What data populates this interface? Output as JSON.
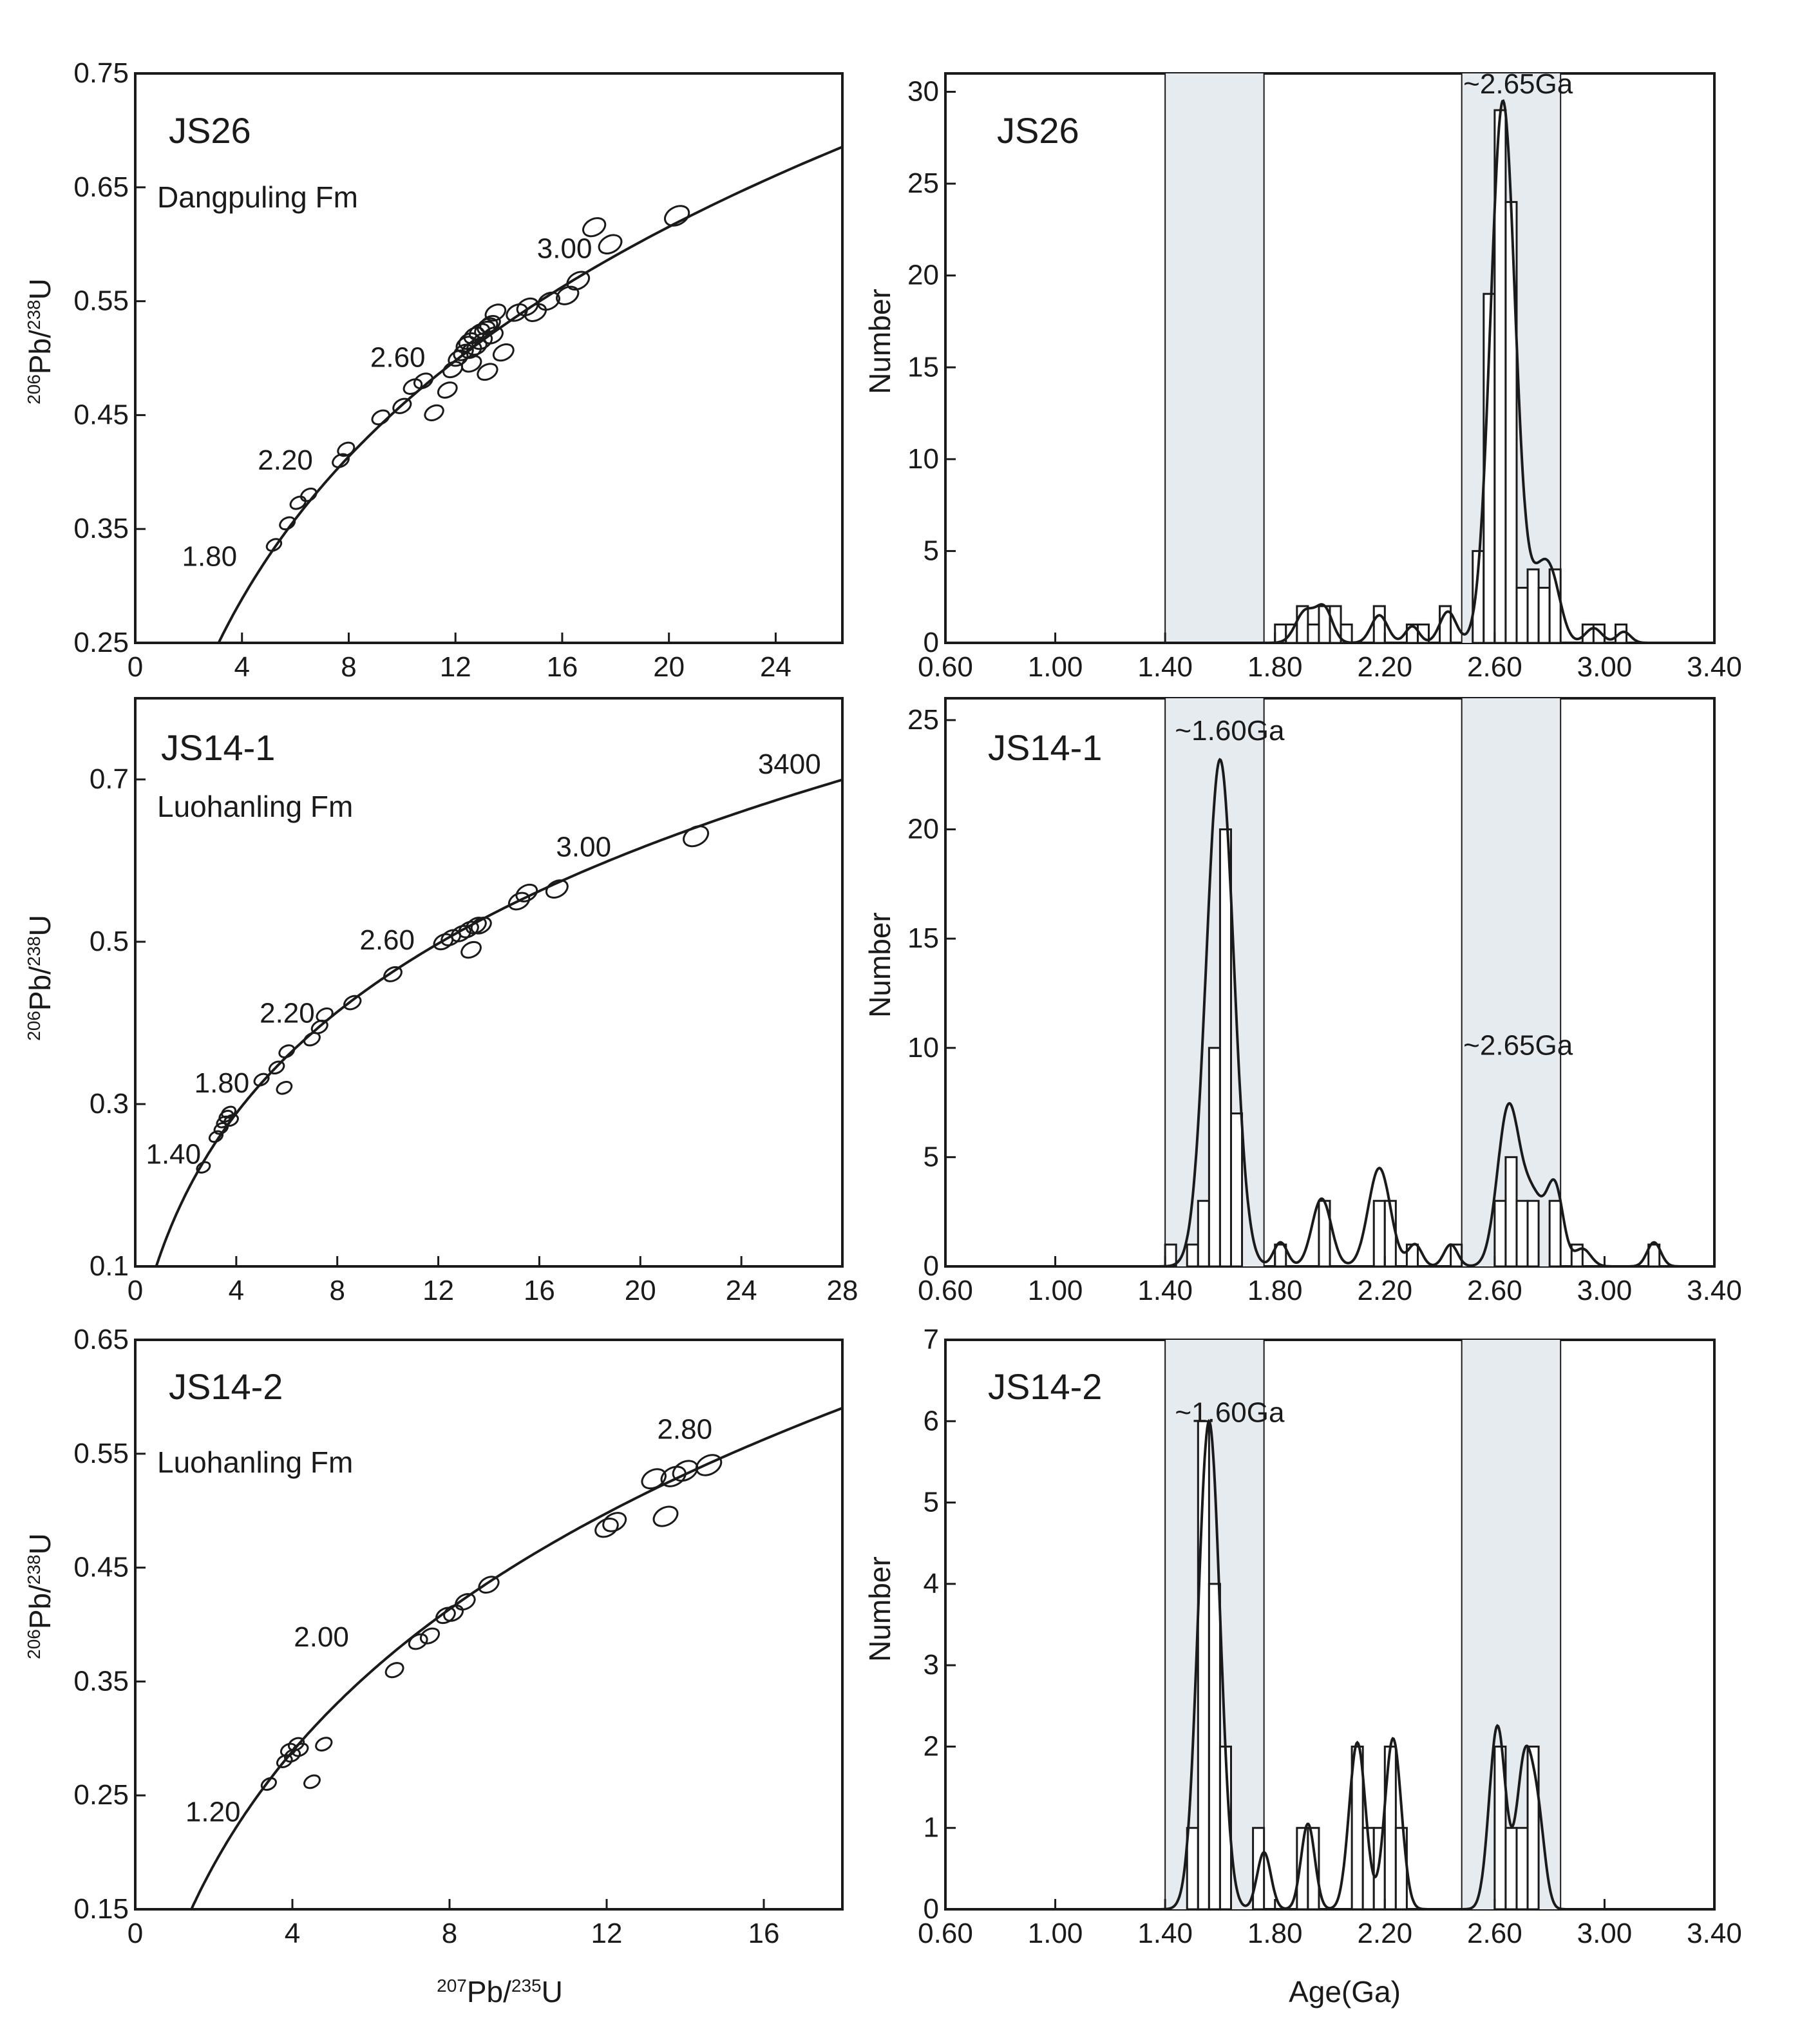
{
  "colors": {
    "ink": "#1a1a1a",
    "band": "#e6ebef",
    "background": "#ffffff"
  },
  "chart_data": [
    {
      "id": "concordia-js26",
      "type": "scatter",
      "subtype": "U-Pb concordia with error ellipses",
      "title": "JS26",
      "subtitle": "Dangpuling Fm",
      "xlabel": {
        "pre": "207",
        "main": "Pb/",
        "sup": "235",
        "post": "U"
      },
      "ylabel": {
        "pre": "206",
        "main": "Pb/",
        "sup": "238",
        "post": "U"
      },
      "xlim": [
        0,
        26.5
      ],
      "ylim": [
        0.25,
        0.75
      ],
      "xticks": [
        0,
        4,
        8,
        12,
        16,
        20,
        24
      ],
      "xtick_labels": [
        "0",
        "4",
        "8",
        "12",
        "16",
        "20",
        "24"
      ],
      "yticks": [
        0.25,
        0.35,
        0.45,
        0.55,
        0.65,
        0.75
      ],
      "ytick_labels": [
        "0.25",
        "0.35",
        "0.45",
        "0.55",
        "0.65",
        "0.75"
      ],
      "age_labels": [
        {
          "text": "1.80",
          "age": 1.8
        },
        {
          "text": "2.20",
          "age": 2.2
        },
        {
          "text": "2.60",
          "age": 2.6
        },
        {
          "text": "3.00",
          "age": 3.0
        }
      ],
      "ellipses": [
        [
          5.2,
          0.336
        ],
        [
          5.7,
          0.355
        ],
        [
          6.1,
          0.373
        ],
        [
          6.5,
          0.38
        ],
        [
          7.7,
          0.41
        ],
        [
          7.9,
          0.42
        ],
        [
          9.2,
          0.448
        ],
        [
          10.0,
          0.458
        ],
        [
          10.4,
          0.475
        ],
        [
          10.8,
          0.48
        ],
        [
          11.2,
          0.452
        ],
        [
          11.7,
          0.472
        ],
        [
          11.9,
          0.49
        ],
        [
          12.1,
          0.5
        ],
        [
          12.3,
          0.505
        ],
        [
          12.4,
          0.512
        ],
        [
          12.5,
          0.515
        ],
        [
          12.6,
          0.507
        ],
        [
          12.7,
          0.52
        ],
        [
          12.8,
          0.51
        ],
        [
          12.9,
          0.523
        ],
        [
          13.0,
          0.515
        ],
        [
          13.1,
          0.525
        ],
        [
          13.2,
          0.528
        ],
        [
          13.3,
          0.53
        ],
        [
          13.4,
          0.52
        ],
        [
          13.5,
          0.54
        ],
        [
          12.6,
          0.495
        ],
        [
          13.2,
          0.488
        ],
        [
          13.8,
          0.505
        ],
        [
          14.3,
          0.54
        ],
        [
          14.7,
          0.545
        ],
        [
          15.0,
          0.54
        ],
        [
          15.5,
          0.55
        ],
        [
          16.2,
          0.555
        ],
        [
          16.6,
          0.568
        ],
        [
          17.2,
          0.615
        ],
        [
          17.8,
          0.6
        ],
        [
          20.3,
          0.625
        ]
      ]
    },
    {
      "id": "histogram-js26",
      "type": "bar",
      "subtype": "histogram with probability density curve",
      "title": "JS26",
      "xlabel": "Age(Ga)",
      "ylabel": "Number",
      "xlim": [
        0.6,
        3.4
      ],
      "ylim": [
        0,
        31
      ],
      "xticks": [
        0.6,
        1.0,
        1.4,
        1.8,
        2.2,
        2.6,
        3.0,
        3.4
      ],
      "xtick_labels": [
        "0.60",
        "1.00",
        "1.40",
        "1.80",
        "2.20",
        "2.60",
        "3.00",
        "3.40"
      ],
      "yticks": [
        0,
        5,
        10,
        15,
        20,
        25,
        30
      ],
      "ytick_labels": [
        "0",
        "5",
        "10",
        "15",
        "20",
        "25",
        "30"
      ],
      "bin_width": 0.04,
      "bins": [
        [
          1.82,
          1
        ],
        [
          1.86,
          1
        ],
        [
          1.9,
          2
        ],
        [
          1.94,
          1
        ],
        [
          1.98,
          2
        ],
        [
          2.02,
          2
        ],
        [
          2.06,
          1
        ],
        [
          2.18,
          2
        ],
        [
          2.3,
          1
        ],
        [
          2.34,
          1
        ],
        [
          2.42,
          2
        ],
        [
          2.54,
          5
        ],
        [
          2.58,
          19
        ],
        [
          2.62,
          29
        ],
        [
          2.66,
          24
        ],
        [
          2.7,
          3
        ],
        [
          2.74,
          4
        ],
        [
          2.78,
          3
        ],
        [
          2.82,
          4
        ],
        [
          2.94,
          1
        ],
        [
          2.98,
          1
        ],
        [
          3.06,
          1
        ]
      ],
      "density_peaks": [
        {
          "age": 2.63,
          "height": 29.5,
          "sd": 0.045
        },
        {
          "age": 2.76,
          "height": 3.0,
          "sd": 0.04
        },
        {
          "age": 2.81,
          "height": 2.6,
          "sd": 0.035
        },
        {
          "age": 1.91,
          "height": 1.7,
          "sd": 0.035
        },
        {
          "age": 1.98,
          "height": 1.8,
          "sd": 0.03
        },
        {
          "age": 2.18,
          "height": 1.5,
          "sd": 0.03
        },
        {
          "age": 2.3,
          "height": 0.9,
          "sd": 0.025
        },
        {
          "age": 2.43,
          "height": 1.7,
          "sd": 0.03
        },
        {
          "age": 2.96,
          "height": 0.8,
          "sd": 0.03
        },
        {
          "age": 3.07,
          "height": 0.6,
          "sd": 0.025
        }
      ],
      "annotations": [
        {
          "text": "~2.65Ga",
          "age": 2.65,
          "value": 30.4
        }
      ],
      "bands": [
        [
          1.4,
          1.76
        ],
        [
          2.48,
          2.84
        ]
      ]
    },
    {
      "id": "concordia-js14-1",
      "type": "scatter",
      "subtype": "U-Pb concordia with error ellipses",
      "title": "JS14-1",
      "subtitle": "Luohanling Fm",
      "xlabel": {
        "pre": "207",
        "main": "Pb/",
        "sup": "235",
        "post": "U"
      },
      "ylabel": {
        "pre": "206",
        "main": "Pb/",
        "sup": "238",
        "post": "U"
      },
      "xlim": [
        0,
        28
      ],
      "ylim": [
        0.1,
        0.8
      ],
      "xticks": [
        0,
        4,
        8,
        12,
        16,
        20,
        24,
        28
      ],
      "xtick_labels": [
        "0",
        "4",
        "8",
        "12",
        "16",
        "20",
        "24",
        "28"
      ],
      "yticks": [
        0.1,
        0.3,
        0.5,
        0.7
      ],
      "ytick_labels": [
        "0.1",
        "0.3",
        "0.5",
        "0.7"
      ],
      "age_labels": [
        {
          "text": "1.40",
          "age": 1.4
        },
        {
          "text": "1.80",
          "age": 1.8
        },
        {
          "text": "2.20",
          "age": 2.2
        },
        {
          "text": "2.60",
          "age": 2.6
        },
        {
          "text": "3.00",
          "age": 3.0
        },
        {
          "text": "3400",
          "age": 3.4
        }
      ],
      "ellipses": [
        [
          2.7,
          0.222
        ],
        [
          3.2,
          0.26
        ],
        [
          3.4,
          0.27
        ],
        [
          3.5,
          0.278
        ],
        [
          3.6,
          0.285
        ],
        [
          3.7,
          0.29
        ],
        [
          3.8,
          0.28
        ],
        [
          5.0,
          0.33
        ],
        [
          5.6,
          0.345
        ],
        [
          5.9,
          0.32
        ],
        [
          6.0,
          0.365
        ],
        [
          7.0,
          0.38
        ],
        [
          7.3,
          0.395
        ],
        [
          7.5,
          0.41
        ],
        [
          8.6,
          0.425
        ],
        [
          10.2,
          0.46
        ],
        [
          12.2,
          0.5
        ],
        [
          12.5,
          0.505
        ],
        [
          12.9,
          0.51
        ],
        [
          13.2,
          0.515
        ],
        [
          13.5,
          0.52
        ],
        [
          13.7,
          0.52
        ],
        [
          13.3,
          0.49
        ],
        [
          15.2,
          0.55
        ],
        [
          15.5,
          0.56
        ],
        [
          16.7,
          0.565
        ],
        [
          22.2,
          0.63
        ]
      ]
    },
    {
      "id": "histogram-js14-1",
      "type": "bar",
      "subtype": "histogram with probability density curve",
      "title": "JS14-1",
      "xlabel": "Age(Ga)",
      "ylabel": "Number",
      "xlim": [
        0.6,
        3.4
      ],
      "ylim": [
        0,
        26
      ],
      "xticks": [
        0.6,
        1.0,
        1.4,
        1.8,
        2.2,
        2.6,
        3.0,
        3.4
      ],
      "xtick_labels": [
        "0.60",
        "1.00",
        "1.40",
        "1.80",
        "2.20",
        "2.60",
        "3.00",
        "3.40"
      ],
      "yticks": [
        0,
        5,
        10,
        15,
        20,
        25
      ],
      "ytick_labels": [
        "0",
        "5",
        "10",
        "15",
        "20",
        "25"
      ],
      "bin_width": 0.04,
      "bins": [
        [
          1.42,
          1
        ],
        [
          1.5,
          1
        ],
        [
          1.54,
          3
        ],
        [
          1.58,
          10
        ],
        [
          1.62,
          20
        ],
        [
          1.66,
          7
        ],
        [
          1.82,
          1
        ],
        [
          1.98,
          3
        ],
        [
          2.18,
          3
        ],
        [
          2.22,
          3
        ],
        [
          2.3,
          1
        ],
        [
          2.46,
          1
        ],
        [
          2.62,
          3
        ],
        [
          2.66,
          5
        ],
        [
          2.7,
          3
        ],
        [
          2.74,
          3
        ],
        [
          2.82,
          3
        ],
        [
          2.9,
          1
        ],
        [
          3.18,
          1
        ]
      ],
      "density_peaks": [
        {
          "age": 1.6,
          "height": 23.2,
          "sd": 0.05
        },
        {
          "age": 2.65,
          "height": 7.2,
          "sd": 0.04
        },
        {
          "age": 2.74,
          "height": 3.0,
          "sd": 0.04
        },
        {
          "age": 2.82,
          "height": 3.5,
          "sd": 0.03
        },
        {
          "age": 2.18,
          "height": 4.5,
          "sd": 0.04
        },
        {
          "age": 1.97,
          "height": 3.1,
          "sd": 0.035
        },
        {
          "age": 1.82,
          "height": 1.1,
          "sd": 0.025
        },
        {
          "age": 2.31,
          "height": 1.0,
          "sd": 0.025
        },
        {
          "age": 2.44,
          "height": 1.0,
          "sd": 0.025
        },
        {
          "age": 2.92,
          "height": 0.8,
          "sd": 0.03
        },
        {
          "age": 3.18,
          "height": 1.1,
          "sd": 0.025
        }
      ],
      "annotations": [
        {
          "text": "~1.60Ga",
          "age": 1.6,
          "value": 24.5
        },
        {
          "text": "~2.65Ga",
          "age": 2.65,
          "value": 10.1
        }
      ],
      "bands": [
        [
          1.4,
          1.76
        ],
        [
          2.48,
          2.84
        ]
      ]
    },
    {
      "id": "concordia-js14-2",
      "type": "scatter",
      "subtype": "U-Pb concordia with error ellipses",
      "title": "JS14-2",
      "subtitle": "Luohanling Fm",
      "xlabel": {
        "pre": "207",
        "main": "Pb/",
        "sup": "235",
        "post": "U"
      },
      "ylabel": {
        "pre": "206",
        "main": "Pb/",
        "sup": "238",
        "post": "U"
      },
      "xlim": [
        0,
        18
      ],
      "ylim": [
        0.15,
        0.65
      ],
      "xticks": [
        0,
        4,
        8,
        12,
        16
      ],
      "xtick_labels": [
        "0",
        "4",
        "8",
        "12",
        "16"
      ],
      "yticks": [
        0.15,
        0.25,
        0.35,
        0.45,
        0.55,
        0.65
      ],
      "ytick_labels": [
        "0.15",
        "0.25",
        "0.35",
        "0.45",
        "0.55",
        "0.65"
      ],
      "age_labels": [
        {
          "text": "1.20",
          "age": 1.2
        },
        {
          "text": "2.00",
          "age": 2.0
        },
        {
          "text": "2.80",
          "age": 2.8
        }
      ],
      "ellipses": [
        [
          3.4,
          0.26
        ],
        [
          3.8,
          0.28
        ],
        [
          3.9,
          0.29
        ],
        [
          4.0,
          0.285
        ],
        [
          4.1,
          0.295
        ],
        [
          4.2,
          0.29
        ],
        [
          4.5,
          0.262
        ],
        [
          4.8,
          0.295
        ],
        [
          6.6,
          0.36
        ],
        [
          7.2,
          0.385
        ],
        [
          7.5,
          0.39
        ],
        [
          7.9,
          0.408
        ],
        [
          8.1,
          0.41
        ],
        [
          8.4,
          0.42
        ],
        [
          9.0,
          0.435
        ],
        [
          12.0,
          0.485
        ],
        [
          12.2,
          0.49
        ],
        [
          13.2,
          0.528
        ],
        [
          13.5,
          0.495
        ],
        [
          13.7,
          0.53
        ],
        [
          14.0,
          0.535
        ],
        [
          14.6,
          0.54
        ]
      ]
    },
    {
      "id": "histogram-js14-2",
      "type": "bar",
      "subtype": "histogram with probability density curve",
      "title": "JS14-2",
      "xlabel": "Age(Ga)",
      "ylabel": "Number",
      "xlim": [
        0.6,
        3.4
      ],
      "ylim": [
        0,
        7
      ],
      "xticks": [
        0.6,
        1.0,
        1.4,
        1.8,
        2.2,
        2.6,
        3.0,
        3.4
      ],
      "xtick_labels": [
        "0.60",
        "1.00",
        "1.40",
        "1.80",
        "2.20",
        "2.60",
        "3.00",
        "3.40"
      ],
      "yticks": [
        0,
        1,
        2,
        3,
        4,
        5,
        6,
        7
      ],
      "ytick_labels": [
        "0",
        "1",
        "2",
        "3",
        "4",
        "5",
        "6",
        "7"
      ],
      "bin_width": 0.04,
      "bins": [
        [
          1.5,
          1
        ],
        [
          1.54,
          6
        ],
        [
          1.58,
          4
        ],
        [
          1.62,
          2
        ],
        [
          1.74,
          1
        ],
        [
          1.9,
          1
        ],
        [
          1.94,
          1
        ],
        [
          2.1,
          2
        ],
        [
          2.14,
          1
        ],
        [
          2.18,
          1
        ],
        [
          2.22,
          2
        ],
        [
          2.26,
          1
        ],
        [
          2.62,
          2
        ],
        [
          2.66,
          1
        ],
        [
          2.7,
          1
        ],
        [
          2.74,
          2
        ]
      ],
      "density_peaks": [
        {
          "age": 1.56,
          "height": 6.0,
          "sd": 0.04
        },
        {
          "age": 1.76,
          "height": 0.7,
          "sd": 0.025
        },
        {
          "age": 1.92,
          "height": 1.05,
          "sd": 0.025
        },
        {
          "age": 2.1,
          "height": 2.05,
          "sd": 0.03
        },
        {
          "age": 2.23,
          "height": 2.1,
          "sd": 0.03
        },
        {
          "age": 2.61,
          "height": 2.25,
          "sd": 0.03
        },
        {
          "age": 2.71,
          "height": 1.85,
          "sd": 0.03
        },
        {
          "age": 2.76,
          "height": 0.9,
          "sd": 0.025
        }
      ],
      "annotations": [
        {
          "text": "~1.60Ga",
          "age": 1.6,
          "value": 6.1
        }
      ],
      "bands": [
        [
          1.4,
          1.76
        ],
        [
          2.48,
          2.84
        ]
      ]
    }
  ]
}
